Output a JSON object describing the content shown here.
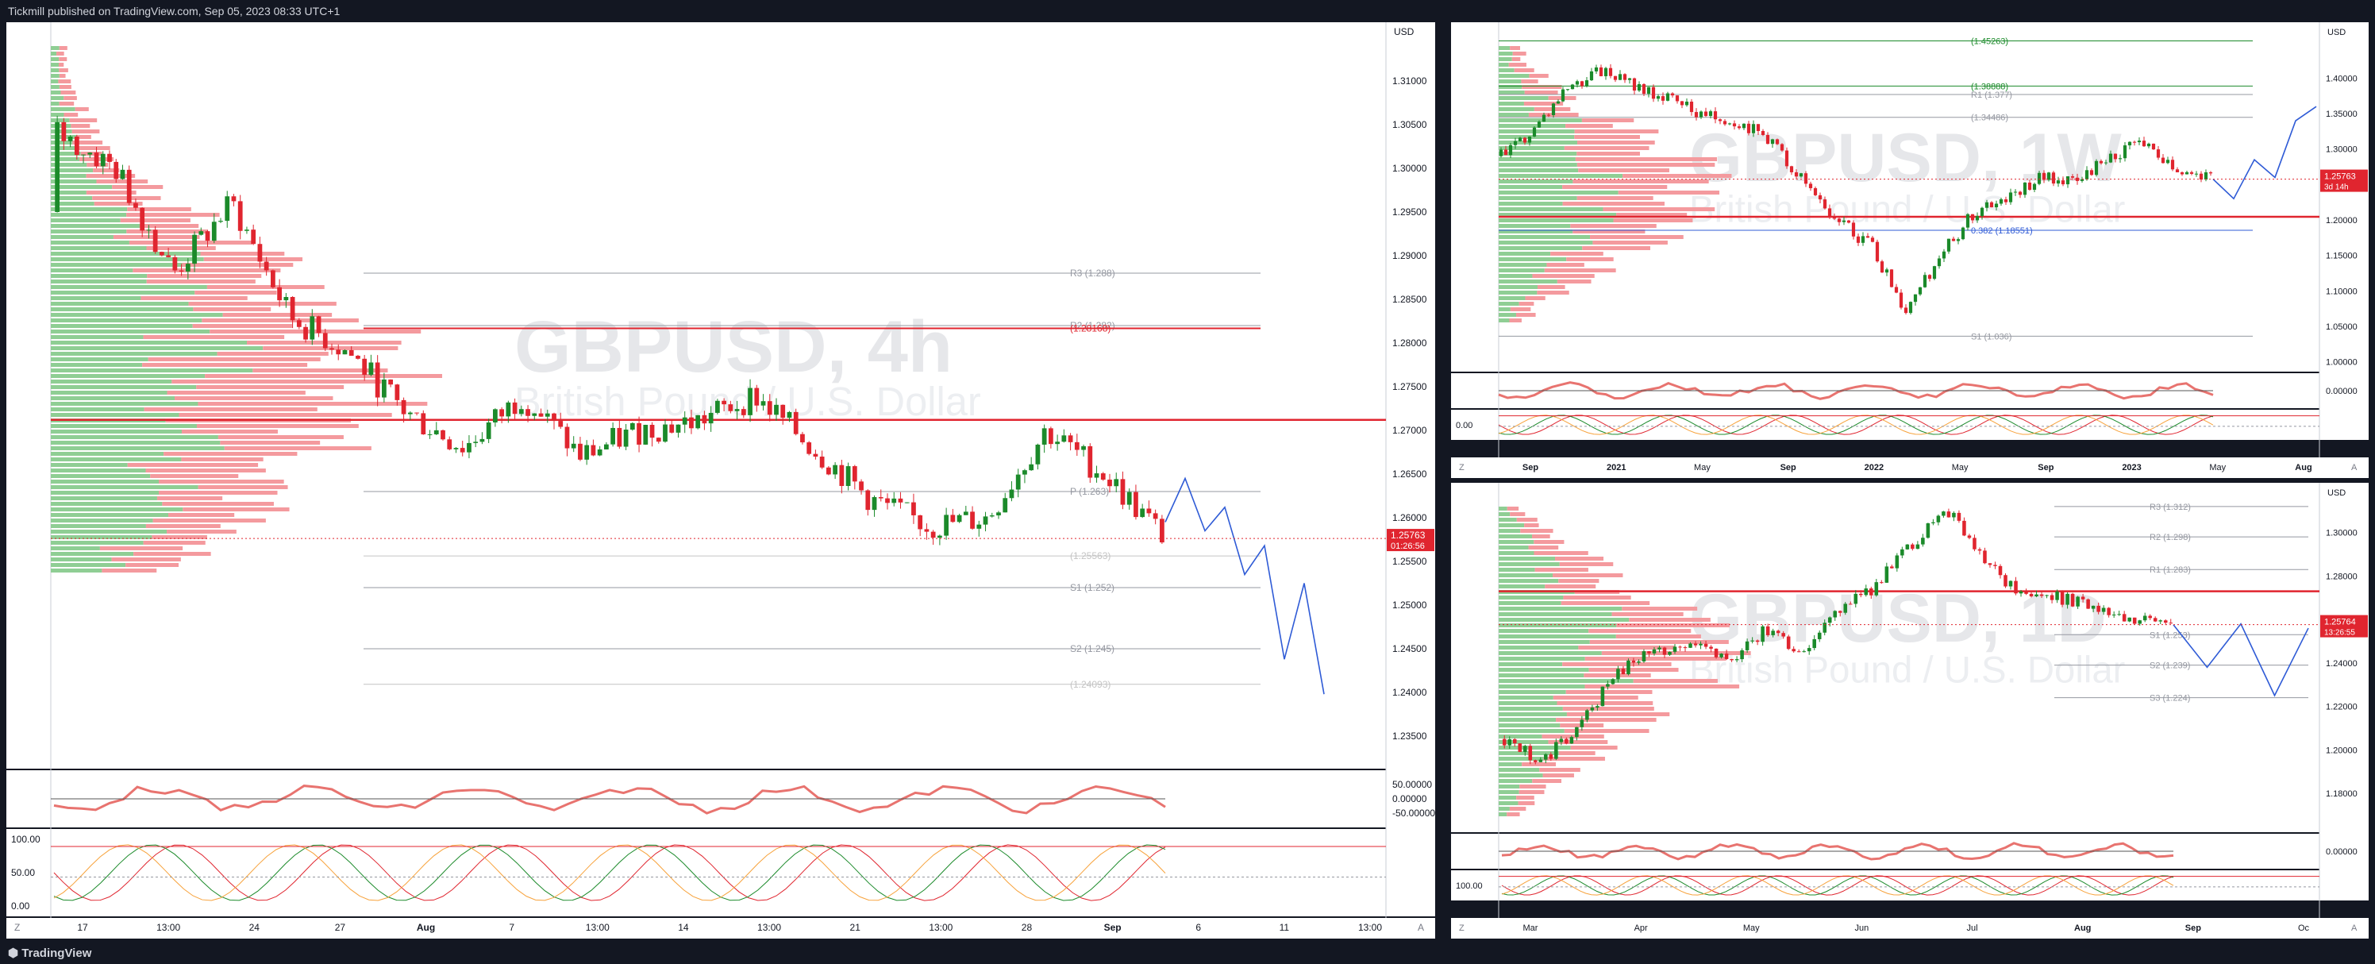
{
  "header": {
    "published_text": "Tickmill published on TradingView.com, Sep 05, 2023 08:33 UTC+1"
  },
  "footer": {
    "brand": "TradingView"
  },
  "colors": {
    "bull": "#1b8a2a",
    "bear": "#e0252f",
    "bg": "#ffffff",
    "frame": "#131722",
    "forecast": "#2f5bd6",
    "price_tag": "#e0252f"
  },
  "chart_data": [
    {
      "type": "candlestick",
      "id": "main",
      "watermark_symbol": "GBPUSD, 4h",
      "watermark_name": "British Pound / U.S. Dollar",
      "currency": "USD",
      "ylim": [
        1.232,
        1.316
      ],
      "price_ticks": [
        "1.31000",
        "1.30500",
        "1.30000",
        "1.29500",
        "1.29000",
        "1.28500",
        "1.28000",
        "1.27500",
        "1.27000",
        "1.26500",
        "1.26000",
        "1.25500",
        "1.25000",
        "1.24500",
        "1.24000",
        "1.23500"
      ],
      "x_ticks": [
        "17",
        "13:00",
        "24",
        "27",
        "Aug",
        "7",
        "13:00",
        "14",
        "13:00",
        "21",
        "13:00",
        "28",
        "Sep",
        "6",
        "11",
        "13:00"
      ],
      "last_price": "1.25763",
      "countdown": "01:26:56",
      "levels": [
        {
          "label": "R3 (1.288)",
          "value": 1.288,
          "color": "#9598a1"
        },
        {
          "label": "R2 (1.282)",
          "value": 1.282,
          "color": "#9598a1"
        },
        {
          "label": "(1.28168)",
          "value": 1.28168,
          "color": "#e0252f"
        },
        {
          "label": "P (1.263)",
          "value": 1.263,
          "color": "#9598a1"
        },
        {
          "label": "(1.25563)",
          "value": 1.25563,
          "color": "#c4c4c4"
        },
        {
          "label": "S1 (1.252)",
          "value": 1.252,
          "color": "#9598a1"
        },
        {
          "label": "S2 (1.245)",
          "value": 1.245,
          "color": "#9598a1"
        },
        {
          "label": "(1.24093)",
          "value": 1.24093,
          "color": "#c4c4c4"
        }
      ],
      "rsi_ticks": [
        "50.00000",
        "0.00000",
        "-50.00000"
      ],
      "stoch_ticks": [
        "100.00",
        "50.00",
        "0.00"
      ],
      "forecast_path": [
        1.2595,
        1.2645,
        1.2585,
        1.2612,
        1.2535,
        1.2568,
        1.2438,
        1.2525,
        1.2398
      ]
    },
    {
      "type": "candlestick",
      "id": "weekly",
      "watermark_symbol": "GBPUSD, 1W",
      "watermark_name": "British Pound / U.S. Dollar",
      "currency": "USD",
      "ylim": [
        0.995,
        1.47
      ],
      "price_ticks": [
        "1.40000",
        "1.35000",
        "1.30000",
        "1.25000",
        "1.20000",
        "1.15000",
        "1.10000",
        "1.05000",
        "1.00000"
      ],
      "x_ticks": [
        "Sep",
        "2021",
        "May",
        "Sep",
        "2022",
        "May",
        "Sep",
        "2023",
        "May",
        "Aug"
      ],
      "last_price": "1.25763",
      "countdown": "3d 14h",
      "levels": [
        {
          "label": "(1.45263)",
          "value": 1.45263,
          "color": "#1b8a2a"
        },
        {
          "label": "(1.38888)",
          "value": 1.38888,
          "color": "#1b8a2a"
        },
        {
          "label": "R1 (1.377)",
          "value": 1.377,
          "color": "#9598a1"
        },
        {
          "label": "(1.34486)",
          "value": 1.34486,
          "color": "#9598a1"
        },
        {
          "label": "0.382 (1.18551)",
          "value": 1.18551,
          "color": "#2f5bd6"
        },
        {
          "label": "S1 (1.036)",
          "value": 1.036,
          "color": "#9598a1"
        }
      ],
      "rsi_ticks": [
        "0.00000"
      ],
      "stoch_ticks": [
        "0.00"
      ]
    },
    {
      "type": "candlestick",
      "id": "daily",
      "watermark_symbol": "GBPUSD, 1D",
      "watermark_name": "British Pound / U.S. Dollar",
      "currency": "USD",
      "ylim": [
        1.165,
        1.32
      ],
      "price_ticks": [
        "1.30000",
        "1.28000",
        "1.26000",
        "1.24000",
        "1.22000",
        "1.20000",
        "1.18000"
      ],
      "x_ticks": [
        "Mar",
        "Apr",
        "May",
        "Jun",
        "Jul",
        "Aug",
        "Sep",
        "Oc"
      ],
      "last_price": "1.25764",
      "countdown": "13:26:55",
      "levels": [
        {
          "label": "R3 (1.312)",
          "value": 1.312,
          "color": "#9598a1"
        },
        {
          "label": "R2 (1.298)",
          "value": 1.298,
          "color": "#9598a1"
        },
        {
          "label": "R1 (1.283)",
          "value": 1.283,
          "color": "#9598a1"
        },
        {
          "label": "S1 (1.253)",
          "value": 1.253,
          "color": "#9598a1"
        },
        {
          "label": "S2 (1.239)",
          "value": 1.239,
          "color": "#9598a1"
        },
        {
          "label": "S3 (1.224)",
          "value": 1.224,
          "color": "#9598a1"
        }
      ],
      "rsi_ticks": [
        "0.00000"
      ],
      "stoch_ticks": [
        "100.00"
      ]
    }
  ]
}
